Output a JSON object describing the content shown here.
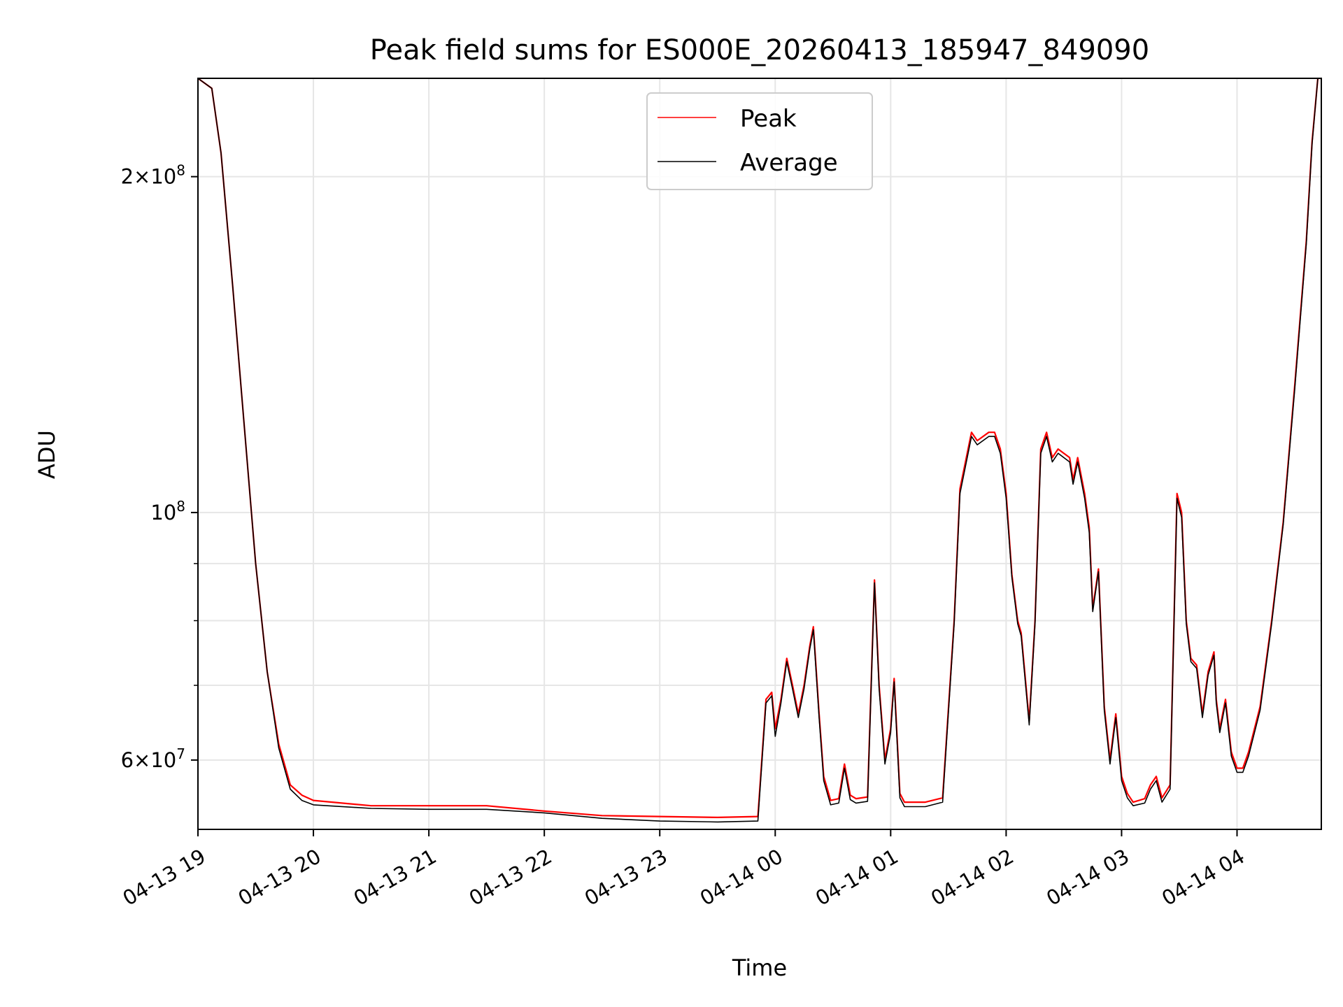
{
  "chart_data": {
    "type": "line",
    "title": "Peak field sums for ES000E_20260413_185947_849090",
    "xlabel": "Time",
    "ylabel": "ADU",
    "yscale": "log",
    "ylim": [
      52000000,
      245000000
    ],
    "xlim": [
      0,
      9.73
    ],
    "grid": true,
    "legend_position": "top-center",
    "x_ticks": [
      {
        "x": 0,
        "label": "04-13 19"
      },
      {
        "x": 1,
        "label": "04-13 20"
      },
      {
        "x": 2,
        "label": "04-13 21"
      },
      {
        "x": 3,
        "label": "04-13 22"
      },
      {
        "x": 4,
        "label": "04-13 23"
      },
      {
        "x": 5,
        "label": "04-14 00"
      },
      {
        "x": 6,
        "label": "04-14 01"
      },
      {
        "x": 7,
        "label": "04-14 02"
      },
      {
        "x": 8,
        "label": "04-14 03"
      },
      {
        "x": 9,
        "label": "04-14 04"
      }
    ],
    "y_ticks": [
      {
        "value": 60000000,
        "base": "6",
        "exp": "7"
      },
      {
        "value": 100000000,
        "base": "",
        "exp": "8"
      },
      {
        "value": 200000000,
        "base": "2",
        "exp": "8"
      }
    ],
    "y_minor_ticks": [
      70000000,
      80000000,
      90000000
    ],
    "x_unit_note": "hours after 2026-04-13 19:00",
    "series": [
      {
        "name": "Peak",
        "color": "#ff0000",
        "points": [
          [
            0,
            245
          ],
          [
            0.12,
            240
          ],
          [
            0.2,
            210
          ],
          [
            0.3,
            160
          ],
          [
            0.4,
            120
          ],
          [
            0.5,
            90
          ],
          [
            0.6,
            72
          ],
          [
            0.7,
            62
          ],
          [
            0.8,
            57
          ],
          [
            0.9,
            55.8
          ],
          [
            1.0,
            55.2
          ],
          [
            1.5,
            54.6
          ],
          [
            2.0,
            54.6
          ],
          [
            2.5,
            54.6
          ],
          [
            3.0,
            54.0
          ],
          [
            3.5,
            53.5
          ],
          [
            4.0,
            53.4
          ],
          [
            4.5,
            53.3
          ],
          [
            4.85,
            53.4
          ],
          [
            4.92,
            68
          ],
          [
            4.97,
            69
          ],
          [
            5.0,
            64
          ],
          [
            5.05,
            68
          ],
          [
            5.1,
            74
          ],
          [
            5.15,
            70
          ],
          [
            5.2,
            66
          ],
          [
            5.25,
            70
          ],
          [
            5.3,
            76
          ],
          [
            5.33,
            79
          ],
          [
            5.38,
            66
          ],
          [
            5.42,
            58
          ],
          [
            5.48,
            55.2
          ],
          [
            5.55,
            55.4
          ],
          [
            5.6,
            59.5
          ],
          [
            5.65,
            55.8
          ],
          [
            5.7,
            55.4
          ],
          [
            5.8,
            55.6
          ],
          [
            5.86,
            87
          ],
          [
            5.9,
            70
          ],
          [
            5.95,
            60
          ],
          [
            6.0,
            64
          ],
          [
            6.03,
            71
          ],
          [
            6.08,
            56
          ],
          [
            6.12,
            55
          ],
          [
            6.3,
            55
          ],
          [
            6.45,
            55.5
          ],
          [
            6.55,
            80
          ],
          [
            6.6,
            105
          ],
          [
            6.7,
            118
          ],
          [
            6.75,
            116
          ],
          [
            6.85,
            118
          ],
          [
            6.9,
            118
          ],
          [
            6.95,
            114
          ],
          [
            7.0,
            104
          ],
          [
            7.05,
            88
          ],
          [
            7.1,
            80
          ],
          [
            7.13,
            78
          ],
          [
            7.2,
            65
          ],
          [
            7.25,
            80
          ],
          [
            7.3,
            114
          ],
          [
            7.35,
            118
          ],
          [
            7.4,
            112
          ],
          [
            7.45,
            114
          ],
          [
            7.5,
            113
          ],
          [
            7.55,
            112
          ],
          [
            7.58,
            107
          ],
          [
            7.62,
            112
          ],
          [
            7.68,
            104
          ],
          [
            7.72,
            97
          ],
          [
            7.75,
            82
          ],
          [
            7.8,
            89
          ],
          [
            7.85,
            67
          ],
          [
            7.9,
            60
          ],
          [
            7.95,
            66
          ],
          [
            8.0,
            58
          ],
          [
            8.05,
            56
          ],
          [
            8.1,
            55
          ],
          [
            8.2,
            55.4
          ],
          [
            8.25,
            57
          ],
          [
            8.3,
            58
          ],
          [
            8.35,
            55.5
          ],
          [
            8.42,
            57
          ],
          [
            8.48,
            104
          ],
          [
            8.52,
            100
          ],
          [
            8.56,
            80
          ],
          [
            8.6,
            74
          ],
          [
            8.65,
            73
          ],
          [
            8.7,
            66
          ],
          [
            8.75,
            72
          ],
          [
            8.8,
            75
          ],
          [
            8.82,
            68
          ],
          [
            8.85,
            64
          ],
          [
            8.9,
            68
          ],
          [
            8.95,
            61
          ],
          [
            9.0,
            59
          ],
          [
            9.05,
            59
          ],
          [
            9.1,
            61
          ],
          [
            9.2,
            67
          ],
          [
            9.3,
            80
          ],
          [
            9.4,
            98
          ],
          [
            9.5,
            130
          ],
          [
            9.6,
            175
          ],
          [
            9.65,
            215
          ],
          [
            9.7,
            245
          ],
          [
            9.73,
            245
          ]
        ]
      },
      {
        "name": "Average",
        "color": "#000000",
        "points": [
          [
            0,
            245
          ],
          [
            0.12,
            240
          ],
          [
            0.2,
            210
          ],
          [
            0.3,
            160
          ],
          [
            0.4,
            120
          ],
          [
            0.5,
            90
          ],
          [
            0.6,
            72
          ],
          [
            0.7,
            61.5
          ],
          [
            0.8,
            56.5
          ],
          [
            0.9,
            55.2
          ],
          [
            1.0,
            54.7
          ],
          [
            1.5,
            54.3
          ],
          [
            2.0,
            54.2
          ],
          [
            2.5,
            54.2
          ],
          [
            3.0,
            53.8
          ],
          [
            3.5,
            53.2
          ],
          [
            4.0,
            52.9
          ],
          [
            4.5,
            52.8
          ],
          [
            4.85,
            52.9
          ],
          [
            4.92,
            67.5
          ],
          [
            4.97,
            68.5
          ],
          [
            5.0,
            63
          ],
          [
            5.05,
            67.5
          ],
          [
            5.1,
            73.5
          ],
          [
            5.15,
            69.5
          ],
          [
            5.2,
            65.5
          ],
          [
            5.25,
            69.5
          ],
          [
            5.3,
            75.5
          ],
          [
            5.33,
            78.5
          ],
          [
            5.38,
            65.5
          ],
          [
            5.42,
            57.5
          ],
          [
            5.48,
            54.7
          ],
          [
            5.55,
            54.9
          ],
          [
            5.6,
            59
          ],
          [
            5.65,
            55.3
          ],
          [
            5.7,
            54.9
          ],
          [
            5.8,
            55.1
          ],
          [
            5.86,
            86.5
          ],
          [
            5.9,
            69.5
          ],
          [
            5.95,
            59.5
          ],
          [
            6.0,
            63.5
          ],
          [
            6.03,
            70.5
          ],
          [
            6.08,
            55.5
          ],
          [
            6.12,
            54.5
          ],
          [
            6.3,
            54.5
          ],
          [
            6.45,
            55
          ],
          [
            6.55,
            79.5
          ],
          [
            6.6,
            104
          ],
          [
            6.7,
            117
          ],
          [
            6.75,
            115
          ],
          [
            6.85,
            117
          ],
          [
            6.9,
            117
          ],
          [
            6.95,
            113
          ],
          [
            7.0,
            103
          ],
          [
            7.05,
            87.5
          ],
          [
            7.1,
            79.5
          ],
          [
            7.13,
            77.5
          ],
          [
            7.2,
            64.5
          ],
          [
            7.25,
            79.5
          ],
          [
            7.3,
            113
          ],
          [
            7.35,
            117
          ],
          [
            7.4,
            111
          ],
          [
            7.45,
            113
          ],
          [
            7.5,
            112
          ],
          [
            7.55,
            111
          ],
          [
            7.58,
            106
          ],
          [
            7.62,
            111
          ],
          [
            7.68,
            103
          ],
          [
            7.72,
            96
          ],
          [
            7.75,
            81.5
          ],
          [
            7.8,
            88.5
          ],
          [
            7.85,
            66.5
          ],
          [
            7.9,
            59.5
          ],
          [
            7.95,
            65.5
          ],
          [
            8.0,
            57.5
          ],
          [
            8.05,
            55.5
          ],
          [
            8.1,
            54.6
          ],
          [
            8.2,
            54.9
          ],
          [
            8.25,
            56.5
          ],
          [
            8.3,
            57.5
          ],
          [
            8.35,
            55
          ],
          [
            8.42,
            56.5
          ],
          [
            8.48,
            103
          ],
          [
            8.52,
            99
          ],
          [
            8.56,
            79.5
          ],
          [
            8.6,
            73.5
          ],
          [
            8.65,
            72.5
          ],
          [
            8.7,
            65.5
          ],
          [
            8.75,
            71.5
          ],
          [
            8.8,
            74.5
          ],
          [
            8.82,
            67.5
          ],
          [
            8.85,
            63.5
          ],
          [
            8.9,
            67.5
          ],
          [
            8.95,
            60.5
          ],
          [
            9.0,
            58.5
          ],
          [
            9.05,
            58.5
          ],
          [
            9.1,
            60.5
          ],
          [
            9.2,
            66.5
          ],
          [
            9.3,
            79.5
          ],
          [
            9.4,
            97.5
          ],
          [
            9.5,
            129
          ],
          [
            9.6,
            174
          ],
          [
            9.65,
            214
          ],
          [
            9.7,
            245
          ],
          [
            9.73,
            245
          ]
        ]
      }
    ]
  }
}
